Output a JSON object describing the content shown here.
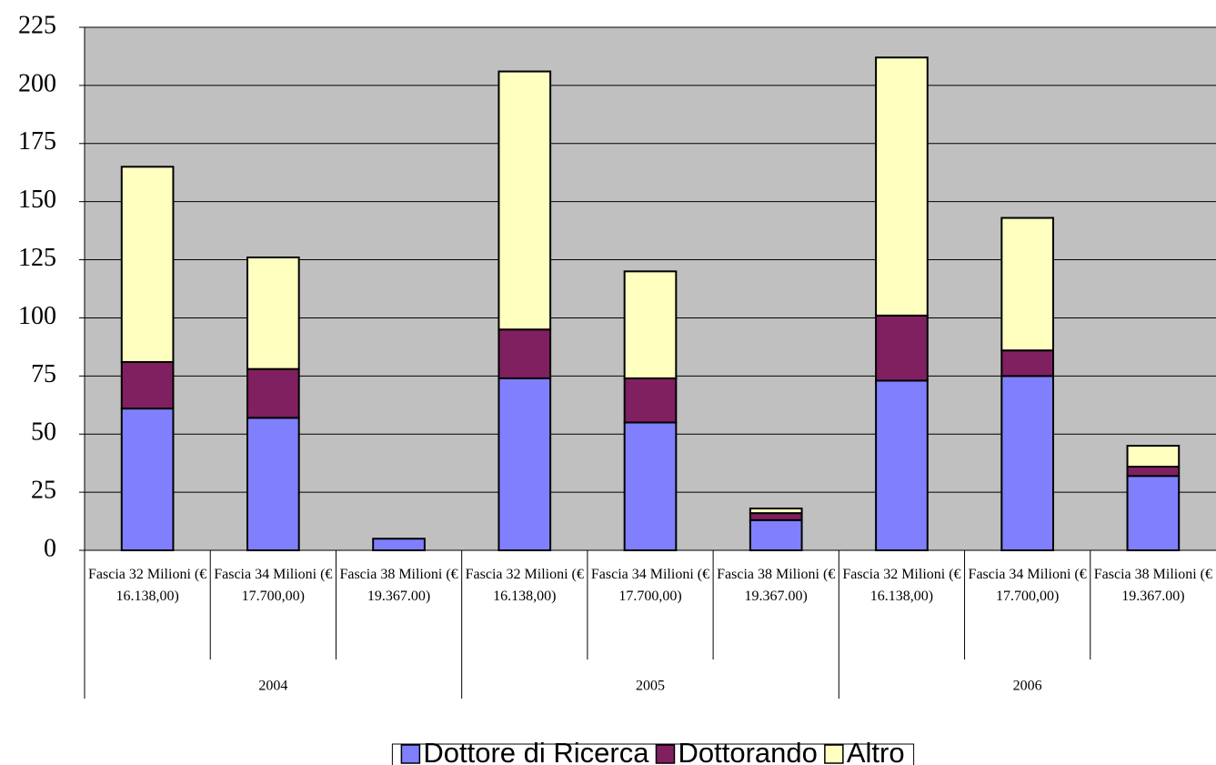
{
  "chart_data": {
    "type": "stacked_bar",
    "categories": [
      "Fascia 32 Milioni (€ 16.138,00)",
      "Fascia 34 Milioni (€ 17.700,00)",
      "Fascia 38 Milioni (€ 19.367.00)",
      "Fascia 32 Milioni (€ 16.138,00)",
      "Fascia 34 Milioni (€ 17.700,00)",
      "Fascia 38 Milioni (€ 19.367.00)",
      "Fascia 32 Milioni (€ 16.138,00)",
      "Fascia 34 Milioni (€ 17.700,00)",
      "Fascia 38 Milioni (€ 19.367.00)"
    ],
    "category_groups": [
      "2004",
      "2005",
      "2006"
    ],
    "series": [
      {
        "name": "Dottore di Ricerca",
        "color": "#8080ff",
        "values": [
          61,
          57,
          5,
          74,
          55,
          13,
          73,
          75,
          32
        ]
      },
      {
        "name": "Dottorando",
        "color": "#802060",
        "values": [
          20,
          21,
          0,
          21,
          19,
          3,
          28,
          11,
          4
        ]
      },
      {
        "name": "Altro",
        "color": "#ffffc0",
        "values": [
          84,
          48,
          0,
          111,
          46,
          2,
          111,
          57,
          9
        ]
      }
    ],
    "ylim": [
      0,
      225
    ],
    "yticks": [
      0,
      25,
      50,
      75,
      100,
      125,
      150,
      175,
      200,
      225
    ],
    "grid": true,
    "legend": "bottom"
  }
}
